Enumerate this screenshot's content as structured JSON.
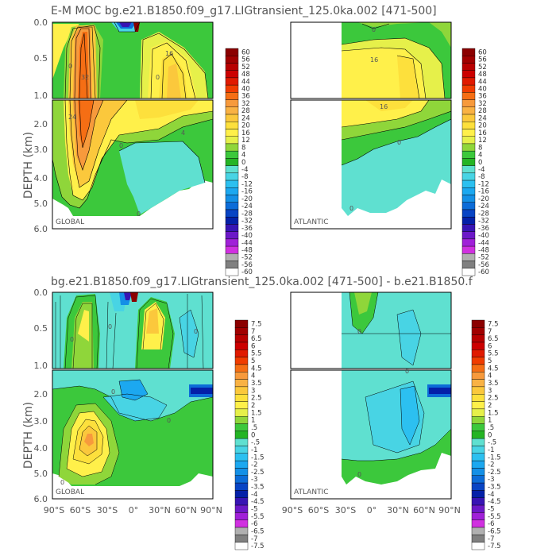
{
  "figure": {
    "title_top": "E-M MOC   bg.e21.B1850.f09_g17.LIGtransient_125.0ka.002  [471-500]",
    "title_bottom": "bg.e21.B1850.f09_g17.LIGtransient_125.0ka.002  [471-500]  - b.e21.B1850.f",
    "ylabel": "DEPTH (km)"
  },
  "chart_data": [
    {
      "type": "contour",
      "name": "top-global",
      "region_label": "GLOBAL",
      "y_ticks_upper": [
        "0.0",
        "0.5",
        "1.0"
      ],
      "y_ticks_lower": [
        "2.0",
        "3.0",
        "4.0",
        "5.0",
        "6.0"
      ],
      "ylim": [
        6.0,
        0.0
      ],
      "x_ticks": [],
      "contour_labels": [
        "0",
        "0",
        "16",
        "24",
        "32",
        "0",
        "0",
        "4"
      ],
      "colorbar_levels": [
        "60",
        "56",
        "52",
        "48",
        "44",
        "40",
        "36",
        "32",
        "28",
        "24",
        "20",
        "16",
        "12",
        "8",
        "4",
        "0",
        "-4",
        "-8",
        "-12",
        "-16",
        "-20",
        "-24",
        "-28",
        "-32",
        "-36",
        "-40",
        "-44",
        "-48",
        "-52",
        "-56",
        "-60"
      ]
    },
    {
      "type": "contour",
      "name": "top-atlantic",
      "region_label": "ATLANTIC",
      "y_ticks_upper": [],
      "y_ticks_lower": [],
      "contour_labels": [
        "16",
        "16",
        "0",
        "0",
        "0"
      ],
      "colorbar_levels": [
        "60",
        "56",
        "52",
        "48",
        "44",
        "40",
        "36",
        "32",
        "28",
        "24",
        "20",
        "16",
        "12",
        "8",
        "4",
        "0",
        "-4",
        "-8",
        "-12",
        "-16",
        "-20",
        "-24",
        "-28",
        "-32",
        "-36",
        "-40",
        "-44",
        "-48",
        "-52",
        "-56",
        "-60"
      ]
    },
    {
      "type": "contour",
      "name": "bottom-global",
      "region_label": "GLOBAL",
      "y_ticks_upper": [
        "0.0",
        "0.5",
        "1.0"
      ],
      "y_ticks_lower": [
        "2.0",
        "3.0",
        "4.0",
        "5.0",
        "6.0"
      ],
      "x_ticks": [
        "90°S",
        "60°S",
        "30°S",
        "0°",
        "30°N",
        "60°N",
        "90°N"
      ],
      "contour_labels": [
        "0",
        "0",
        "0",
        "0",
        "0",
        "0"
      ],
      "colorbar_levels": [
        "7.5",
        "7",
        "6.5",
        "6",
        "5.5",
        "5",
        "4.5",
        "4",
        "3.5",
        "3",
        "2.5",
        "2",
        "1.5",
        "1",
        ".5",
        "0",
        "-.5",
        "-1",
        "-1.5",
        "-2",
        "-2.5",
        "-3",
        "-3.5",
        "-4",
        "-4.5",
        "-5",
        "-5.5",
        "-6",
        "-6.5",
        "-7",
        "-7.5"
      ]
    },
    {
      "type": "contour",
      "name": "bottom-atlantic",
      "region_label": "ATLANTIC",
      "x_ticks": [
        "90°S",
        "60°S",
        "30°S",
        "0°",
        "30°N",
        "60°N",
        "90°N"
      ],
      "contour_labels": [
        "0",
        "0",
        "0"
      ],
      "colorbar_levels": [
        "7.5",
        "7",
        "6.5",
        "6",
        "5.5",
        "5",
        "4.5",
        "4",
        "3.5",
        "3",
        "2.5",
        "2",
        "1.5",
        "1",
        ".5",
        "0",
        "-.5",
        "-1",
        "-1.5",
        "-2",
        "-2.5",
        "-3",
        "-3.5",
        "-4",
        "-4.5",
        "-5",
        "-5.5",
        "-6",
        "-6.5",
        "-7",
        "-7.5"
      ]
    }
  ],
  "colors": {
    "palette": [
      "#8b0000",
      "#a10000",
      "#b80000",
      "#cc0000",
      "#e01a00",
      "#f03c00",
      "#f56e14",
      "#f79a3c",
      "#f9b244",
      "#fbc83c",
      "#fde03c",
      "#fff04a",
      "#e6f04a",
      "#8fd63a",
      "#3cc83c",
      "#24b424",
      "#5fe0d0",
      "#48d4e4",
      "#2cc0f0",
      "#1ca8f0",
      "#1490e6",
      "#0c6cd8",
      "#0844c4",
      "#0420a8",
      "#3814b4",
      "#6c18c8",
      "#a020d8",
      "#d030e0",
      "#b0b0b0",
      "#808080",
      "#ffffff"
    ],
    "plot_bg": "#ffffff"
  }
}
